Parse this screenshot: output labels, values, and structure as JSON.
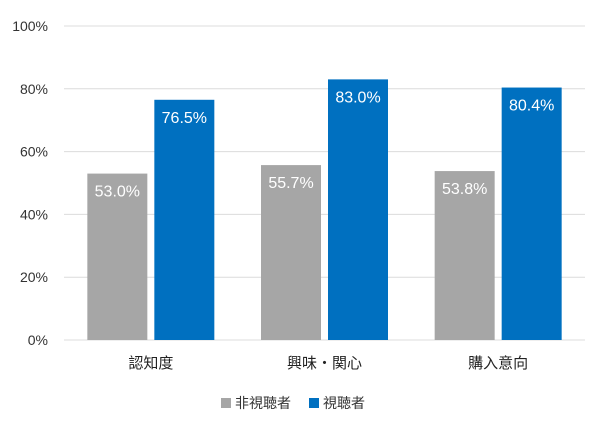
{
  "chart_data": {
    "type": "bar",
    "categories": [
      "認知度",
      "興味・関心",
      "購入意向"
    ],
    "series": [
      {
        "name": "非視聴者",
        "values": [
          53.0,
          55.7,
          53.8
        ],
        "labels": [
          "53.0%",
          "55.7%",
          "53.8%"
        ],
        "color": "#a6a6a6"
      },
      {
        "name": "視聴者",
        "values": [
          76.5,
          83.0,
          80.4
        ],
        "labels": [
          "76.5%",
          "83.0%",
          "80.4%"
        ],
        "color": "#0070c0"
      }
    ],
    "yticks": [
      0,
      20,
      40,
      60,
      80,
      100
    ],
    "ytick_labels": [
      "0%",
      "20%",
      "40%",
      "60%",
      "80%",
      "100%"
    ],
    "ylim": [
      0,
      100
    ],
    "grid": true,
    "legend_position": "bottom-center"
  }
}
